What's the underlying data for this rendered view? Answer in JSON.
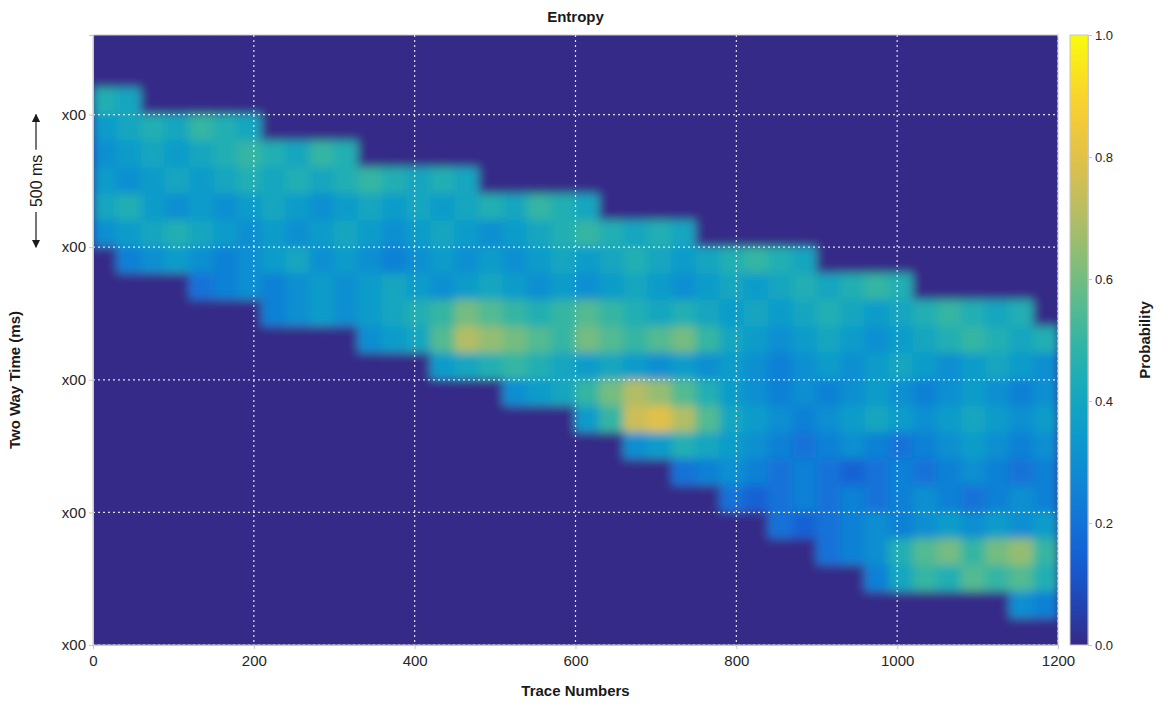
{
  "chart_data": {
    "type": "heatmap",
    "title": "Entropy",
    "x_label": "Trace Numbers",
    "y_label": "Two Way Time (ms)",
    "xlim": [
      0,
      1200
    ],
    "ylim": [
      2500,
      200
    ],
    "xticks": [
      0,
      200,
      400,
      600,
      800,
      1000,
      1200
    ],
    "yticks": [
      {
        "value": 500,
        "label": "x00"
      },
      {
        "value": 1000,
        "label": "x00"
      },
      {
        "value": 1500,
        "label": "x00"
      },
      {
        "value": 2000,
        "label": "x00"
      },
      {
        "value": 2500,
        "label": "x00"
      }
    ],
    "grid": true,
    "colorbar": {
      "label": "Probability",
      "range": [
        0,
        1
      ],
      "ticks": [
        {
          "value": 0,
          "label": "0.0"
        },
        {
          "value": 0.2,
          "label": "0.2"
        },
        {
          "value": 0.4,
          "label": "0.4"
        },
        {
          "value": 0.6,
          "label": "0.6"
        },
        {
          "value": 0.8,
          "label": "0.8"
        },
        {
          "value": 1,
          "label": "1.0"
        }
      ]
    },
    "annotations": [
      {
        "text": "500 ms",
        "y": [
          500,
          1000
        ]
      }
    ],
    "x_edges": [
      0,
      30,
      60,
      90,
      120,
      150,
      180,
      210,
      240,
      270,
      300,
      330,
      360,
      390,
      420,
      450,
      480,
      510,
      540,
      570,
      600,
      630,
      660,
      690,
      720,
      750,
      780,
      810,
      840,
      870,
      900,
      930,
      960,
      990,
      1020,
      1050,
      1080,
      1110,
      1140,
      1170,
      1200
    ],
    "y_edges": [
      200,
      300,
      400,
      500,
      600,
      700,
      800,
      900,
      1000,
      1100,
      1200,
      1300,
      1400,
      1500,
      1600,
      1700,
      1800,
      1900,
      2000,
      2100,
      2200,
      2300,
      2400,
      2500
    ],
    "values": [
      [
        0,
        0,
        0,
        0,
        0,
        0,
        0,
        0,
        0,
        0,
        0,
        0,
        0,
        0,
        0,
        0,
        0,
        0,
        0,
        0,
        0,
        0,
        0,
        0,
        0,
        0,
        0,
        0,
        0,
        0,
        0,
        0,
        0,
        0,
        0,
        0,
        0,
        0,
        0,
        0
      ],
      [
        0,
        0,
        0,
        0,
        0,
        0,
        0,
        0,
        0,
        0,
        0,
        0,
        0,
        0,
        0,
        0,
        0,
        0,
        0,
        0,
        0,
        0,
        0,
        0,
        0,
        0,
        0,
        0,
        0,
        0,
        0,
        0,
        0,
        0,
        0,
        0,
        0,
        0,
        0,
        0
      ],
      [
        0.45,
        0.4,
        0,
        0,
        0,
        0,
        0,
        0,
        0,
        0,
        0,
        0,
        0,
        0,
        0,
        0,
        0,
        0,
        0,
        0,
        0,
        0,
        0,
        0,
        0,
        0,
        0,
        0,
        0,
        0,
        0,
        0,
        0,
        0,
        0,
        0,
        0,
        0,
        0,
        0
      ],
      [
        0.35,
        0.4,
        0.45,
        0.4,
        0.5,
        0.45,
        0.4,
        0,
        0,
        0,
        0,
        0,
        0,
        0,
        0,
        0,
        0,
        0,
        0,
        0,
        0,
        0,
        0,
        0,
        0,
        0,
        0,
        0,
        0,
        0,
        0,
        0,
        0,
        0,
        0,
        0,
        0,
        0,
        0,
        0
      ],
      [
        0.3,
        0.35,
        0.4,
        0.35,
        0.4,
        0.45,
        0.5,
        0.45,
        0.4,
        0.5,
        0.45,
        0,
        0,
        0,
        0,
        0,
        0,
        0,
        0,
        0,
        0,
        0,
        0,
        0,
        0,
        0,
        0,
        0,
        0,
        0,
        0,
        0,
        0,
        0,
        0,
        0,
        0,
        0,
        0,
        0
      ],
      [
        0.35,
        0.3,
        0.35,
        0.4,
        0.35,
        0.4,
        0.45,
        0.4,
        0.45,
        0.4,
        0.45,
        0.5,
        0.45,
        0.4,
        0.45,
        0.4,
        0,
        0,
        0,
        0,
        0,
        0,
        0,
        0,
        0,
        0,
        0,
        0,
        0,
        0,
        0,
        0,
        0,
        0,
        0,
        0,
        0,
        0,
        0,
        0
      ],
      [
        0.4,
        0.45,
        0.35,
        0.3,
        0.35,
        0.3,
        0.35,
        0.4,
        0.35,
        0.3,
        0.35,
        0.4,
        0.35,
        0.4,
        0.35,
        0.4,
        0.45,
        0.4,
        0.5,
        0.45,
        0.4,
        0,
        0,
        0,
        0,
        0,
        0,
        0,
        0,
        0,
        0,
        0,
        0,
        0,
        0,
        0,
        0,
        0,
        0,
        0
      ],
      [
        0.3,
        0.35,
        0.4,
        0.45,
        0.4,
        0.35,
        0.3,
        0.35,
        0.3,
        0.35,
        0.4,
        0.35,
        0.3,
        0.35,
        0.4,
        0.35,
        0.3,
        0.35,
        0.4,
        0.45,
        0.5,
        0.45,
        0.4,
        0.45,
        0.4,
        0,
        0,
        0,
        0,
        0,
        0,
        0,
        0,
        0,
        0,
        0,
        0,
        0,
        0,
        0
      ],
      [
        0,
        0.25,
        0.3,
        0.35,
        0.3,
        0.25,
        0.3,
        0.35,
        0.4,
        0.3,
        0.35,
        0.3,
        0.25,
        0.3,
        0.35,
        0.3,
        0.35,
        0.3,
        0.35,
        0.4,
        0.35,
        0.4,
        0.45,
        0.4,
        0.35,
        0.4,
        0.45,
        0.5,
        0.45,
        0.4,
        0,
        0,
        0,
        0,
        0,
        0,
        0,
        0,
        0,
        0
      ],
      [
        0,
        0,
        0,
        0,
        0.2,
        0.25,
        0.3,
        0.25,
        0.3,
        0.35,
        0.3,
        0.35,
        0.4,
        0.35,
        0.3,
        0.35,
        0.4,
        0.35,
        0.3,
        0.35,
        0.3,
        0.35,
        0.4,
        0.35,
        0.3,
        0.35,
        0.4,
        0.35,
        0.4,
        0.45,
        0.4,
        0.45,
        0.5,
        0.45,
        0,
        0,
        0,
        0,
        0,
        0
      ],
      [
        0,
        0,
        0,
        0,
        0,
        0,
        0,
        0.25,
        0.3,
        0.35,
        0.3,
        0.35,
        0.4,
        0.45,
        0.5,
        0.6,
        0.55,
        0.5,
        0.45,
        0.5,
        0.55,
        0.5,
        0.45,
        0.4,
        0.45,
        0.4,
        0.35,
        0.4,
        0.35,
        0.4,
        0.45,
        0.4,
        0.35,
        0.4,
        0.45,
        0.5,
        0.45,
        0.4,
        0.45,
        0
      ],
      [
        0,
        0,
        0,
        0,
        0,
        0,
        0,
        0,
        0,
        0,
        0,
        0.3,
        0.35,
        0.4,
        0.55,
        0.7,
        0.65,
        0.6,
        0.55,
        0.5,
        0.6,
        0.55,
        0.5,
        0.55,
        0.6,
        0.5,
        0.4,
        0.35,
        0.3,
        0.35,
        0.4,
        0.35,
        0.3,
        0.35,
        0.4,
        0.45,
        0.5,
        0.45,
        0.4,
        0.45
      ],
      [
        0,
        0,
        0,
        0,
        0,
        0,
        0,
        0,
        0,
        0,
        0,
        0,
        0,
        0,
        0.35,
        0.4,
        0.45,
        0.5,
        0.45,
        0.4,
        0.35,
        0.4,
        0.35,
        0.3,
        0.35,
        0.3,
        0.35,
        0.3,
        0.25,
        0.3,
        0.35,
        0.3,
        0.35,
        0.4,
        0.35,
        0.3,
        0.35,
        0.4,
        0.35,
        0.3
      ],
      [
        0,
        0,
        0,
        0,
        0,
        0,
        0,
        0,
        0,
        0,
        0,
        0,
        0,
        0,
        0,
        0,
        0,
        0.3,
        0.35,
        0.4,
        0.5,
        0.6,
        0.7,
        0.65,
        0.55,
        0.45,
        0.35,
        0.3,
        0.25,
        0.3,
        0.25,
        0.3,
        0.35,
        0.3,
        0.25,
        0.3,
        0.35,
        0.3,
        0.25,
        0.3
      ],
      [
        0,
        0,
        0,
        0,
        0,
        0,
        0,
        0,
        0,
        0,
        0,
        0,
        0,
        0,
        0,
        0,
        0,
        0,
        0,
        0,
        0.35,
        0.5,
        0.75,
        0.8,
        0.7,
        0.55,
        0.4,
        0.35,
        0.3,
        0.25,
        0.3,
        0.35,
        0.4,
        0.35,
        0.3,
        0.35,
        0.4,
        0.35,
        0.3,
        0.35
      ],
      [
        0,
        0,
        0,
        0,
        0,
        0,
        0,
        0,
        0,
        0,
        0,
        0,
        0,
        0,
        0,
        0,
        0,
        0,
        0,
        0,
        0,
        0,
        0.3,
        0.35,
        0.45,
        0.4,
        0.35,
        0.3,
        0.25,
        0.2,
        0.25,
        0.3,
        0.25,
        0.2,
        0.25,
        0.3,
        0.35,
        0.3,
        0.25,
        0.3
      ],
      [
        0,
        0,
        0,
        0,
        0,
        0,
        0,
        0,
        0,
        0,
        0,
        0,
        0,
        0,
        0,
        0,
        0,
        0,
        0,
        0,
        0,
        0,
        0,
        0,
        0.2,
        0.25,
        0.3,
        0.25,
        0.2,
        0.25,
        0.2,
        0.15,
        0.2,
        0.25,
        0.2,
        0.25,
        0.3,
        0.25,
        0.2,
        0.25
      ],
      [
        0,
        0,
        0,
        0,
        0,
        0,
        0,
        0,
        0,
        0,
        0,
        0,
        0,
        0,
        0,
        0,
        0,
        0,
        0,
        0,
        0,
        0,
        0,
        0,
        0,
        0,
        0.2,
        0.15,
        0.2,
        0.25,
        0.2,
        0.25,
        0.2,
        0.25,
        0.3,
        0.25,
        0.2,
        0.25,
        0.3,
        0.25
      ],
      [
        0,
        0,
        0,
        0,
        0,
        0,
        0,
        0,
        0,
        0,
        0,
        0,
        0,
        0,
        0,
        0,
        0,
        0,
        0,
        0,
        0,
        0,
        0,
        0,
        0,
        0,
        0,
        0,
        0.2,
        0.15,
        0.2,
        0.25,
        0.3,
        0.25,
        0.3,
        0.35,
        0.3,
        0.35,
        0.3,
        0.35
      ],
      [
        0,
        0,
        0,
        0,
        0,
        0,
        0,
        0,
        0,
        0,
        0,
        0,
        0,
        0,
        0,
        0,
        0,
        0,
        0,
        0,
        0,
        0,
        0,
        0,
        0,
        0,
        0,
        0,
        0,
        0,
        0.2,
        0.25,
        0.3,
        0.45,
        0.55,
        0.6,
        0.5,
        0.6,
        0.65,
        0.5
      ],
      [
        0,
        0,
        0,
        0,
        0,
        0,
        0,
        0,
        0,
        0,
        0,
        0,
        0,
        0,
        0,
        0,
        0,
        0,
        0,
        0,
        0,
        0,
        0,
        0,
        0,
        0,
        0,
        0,
        0,
        0,
        0,
        0,
        0.25,
        0.4,
        0.5,
        0.45,
        0.55,
        0.5,
        0.55,
        0.45
      ],
      [
        0,
        0,
        0,
        0,
        0,
        0,
        0,
        0,
        0,
        0,
        0,
        0,
        0,
        0,
        0,
        0,
        0,
        0,
        0,
        0,
        0,
        0,
        0,
        0,
        0,
        0,
        0,
        0,
        0,
        0,
        0,
        0,
        0,
        0,
        0,
        0,
        0,
        0,
        0.3,
        0.25
      ],
      [
        0,
        0,
        0,
        0,
        0,
        0,
        0,
        0,
        0,
        0,
        0,
        0,
        0,
        0,
        0,
        0,
        0,
        0,
        0,
        0,
        0,
        0,
        0,
        0,
        0,
        0,
        0,
        0,
        0,
        0,
        0,
        0,
        0,
        0,
        0,
        0,
        0,
        0,
        0,
        0
      ]
    ]
  }
}
